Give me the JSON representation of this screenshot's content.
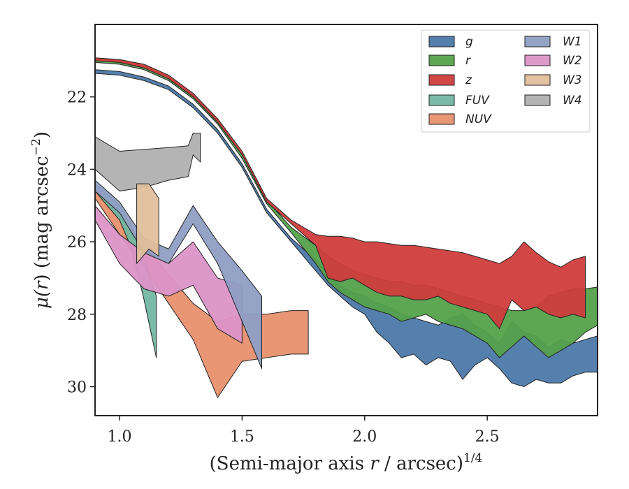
{
  "chart_data": {
    "type": "area",
    "xlabel_main": "(Semi-major axis ",
    "xlabel_var": "r",
    "xlabel_mid": " / arcsec)",
    "xlabel_sup": "1/4",
    "ylabel_main": "μ(",
    "ylabel_var": "r",
    "ylabel_mid": ") (mag arcsec",
    "ylabel_sup": "−2",
    "ylabel_end": ")",
    "xlim": [
      0.9,
      2.95
    ],
    "ylim": [
      30.8,
      20.0
    ],
    "y_inverted": true,
    "xticks": [
      1.0,
      1.5,
      2.0,
      2.5
    ],
    "xtick_labels": [
      "1.0",
      "1.5",
      "2.0",
      "2.5"
    ],
    "yticks": [
      22,
      24,
      26,
      28,
      30
    ],
    "ytick_labels": [
      "22",
      "24",
      "26",
      "28",
      "30"
    ],
    "grid": false,
    "legend_position": "top-right",
    "legend_columns": 2,
    "series": [
      {
        "name": "g",
        "color": "#4c78a8",
        "x": [
          0.9,
          1.0,
          1.1,
          1.2,
          1.3,
          1.4,
          1.5,
          1.6,
          1.7,
          1.8,
          1.85,
          1.9,
          1.95,
          2.0,
          2.05,
          2.1,
          2.15,
          2.2,
          2.25,
          2.3,
          2.35,
          2.4,
          2.45,
          2.5,
          2.55,
          2.6,
          2.65,
          2.7,
          2.75,
          2.8,
          2.85,
          2.9,
          2.95
        ],
        "y_top": [
          21.25,
          21.3,
          21.45,
          21.7,
          22.2,
          22.9,
          23.85,
          25.1,
          25.9,
          26.5,
          26.9,
          27.2,
          27.4,
          27.5,
          27.7,
          27.8,
          28.0,
          28.1,
          28.2,
          28.3,
          28.1,
          28.0,
          28.3,
          28.5,
          28.8,
          28.2,
          28.5,
          28.6,
          28.9,
          28.7,
          28.8,
          28.7,
          28.6
        ],
        "y_bottom": [
          21.35,
          21.4,
          21.55,
          21.8,
          22.3,
          23.0,
          23.95,
          25.2,
          26.0,
          26.8,
          27.2,
          27.5,
          27.8,
          28.0,
          28.5,
          28.8,
          29.2,
          29.1,
          29.4,
          29.2,
          29.3,
          29.8,
          29.4,
          29.2,
          29.5,
          29.9,
          30.0,
          29.8,
          29.9,
          29.9,
          29.7,
          29.6,
          29.6
        ]
      },
      {
        "name": "r",
        "color": "#54a24b",
        "x": [
          0.9,
          1.0,
          1.1,
          1.2,
          1.3,
          1.4,
          1.5,
          1.6,
          1.7,
          1.8,
          1.85,
          1.9,
          1.95,
          2.0,
          2.05,
          2.1,
          2.15,
          2.2,
          2.25,
          2.3,
          2.35,
          2.4,
          2.45,
          2.5,
          2.55,
          2.6,
          2.65,
          2.7,
          2.75,
          2.8,
          2.85,
          2.9,
          2.95
        ],
        "y_top": [
          20.95,
          21.0,
          21.15,
          21.45,
          21.95,
          22.65,
          23.6,
          24.85,
          25.6,
          26.1,
          26.4,
          26.6,
          26.8,
          26.9,
          27.0,
          27.1,
          27.1,
          27.2,
          27.2,
          27.3,
          27.4,
          27.5,
          27.6,
          27.7,
          27.8,
          27.9,
          27.9,
          27.8,
          27.5,
          27.4,
          27.3,
          27.3,
          27.25
        ],
        "y_bottom": [
          21.05,
          21.1,
          21.25,
          21.55,
          22.05,
          22.75,
          23.7,
          24.95,
          25.75,
          26.6,
          27.1,
          27.4,
          27.6,
          27.8,
          27.9,
          28.0,
          28.2,
          28.1,
          28.0,
          28.2,
          28.3,
          28.4,
          28.6,
          28.8,
          29.2,
          28.9,
          28.6,
          28.9,
          29.2,
          29.0,
          28.8,
          28.5,
          28.3
        ]
      },
      {
        "name": "z",
        "color": "#d03c3c",
        "x": [
          0.9,
          1.0,
          1.1,
          1.2,
          1.3,
          1.4,
          1.5,
          1.6,
          1.7,
          1.8,
          1.85,
          1.9,
          1.95,
          2.0,
          2.05,
          2.1,
          2.15,
          2.2,
          2.25,
          2.3,
          2.35,
          2.4,
          2.45,
          2.5,
          2.55,
          2.6,
          2.65,
          2.7,
          2.75,
          2.8,
          2.85,
          2.9
        ],
        "y_top": [
          20.92,
          20.97,
          21.1,
          21.4,
          21.9,
          22.6,
          23.5,
          24.8,
          25.4,
          25.8,
          25.85,
          25.85,
          25.9,
          26.0,
          26.0,
          26.05,
          26.1,
          26.1,
          26.15,
          26.2,
          26.25,
          26.3,
          26.4,
          26.5,
          26.6,
          26.4,
          26.0,
          26.3,
          26.55,
          26.7,
          26.5,
          26.4
        ],
        "y_bottom": [
          21.0,
          21.05,
          21.2,
          21.5,
          22.0,
          22.7,
          23.6,
          24.9,
          25.5,
          26.1,
          27.0,
          27.1,
          27.0,
          27.2,
          27.4,
          27.5,
          27.5,
          27.6,
          27.6,
          27.5,
          27.7,
          27.8,
          27.9,
          28.0,
          28.4,
          27.6,
          27.9,
          27.8,
          28.0,
          28.1,
          28.0,
          28.1
        ]
      },
      {
        "name": "FUV",
        "color": "#72b7a2",
        "x": [
          0.9,
          0.95,
          1.0,
          1.05,
          1.1,
          1.15
        ],
        "y_top": [
          24.4,
          24.7,
          25.0,
          25.6,
          26.5,
          27.5
        ],
        "y_bottom": [
          24.6,
          25.0,
          25.4,
          26.2,
          27.6,
          29.2
        ]
      },
      {
        "name": "NUV",
        "color": "#e8906e",
        "x": [
          0.9,
          1.0,
          1.1,
          1.2,
          1.3,
          1.4,
          1.5,
          1.6,
          1.7,
          1.77
        ],
        "y_top": [
          24.5,
          25.3,
          26.1,
          26.9,
          27.7,
          28.2,
          28.0,
          28.0,
          27.9,
          27.9
        ],
        "y_bottom": [
          24.8,
          25.8,
          26.7,
          27.7,
          28.7,
          30.3,
          29.3,
          29.2,
          29.1,
          29.1
        ]
      },
      {
        "name": "W1",
        "color": "#8f9ec4",
        "x": [
          0.9,
          1.0,
          1.1,
          1.2,
          1.3,
          1.4,
          1.5,
          1.58
        ],
        "y_top": [
          24.3,
          24.9,
          25.9,
          26.2,
          25.0,
          26.0,
          26.8,
          27.5
        ],
        "y_bottom": [
          24.6,
          25.2,
          26.3,
          26.6,
          25.5,
          26.6,
          28.2,
          29.5
        ]
      },
      {
        "name": "W2",
        "color": "#dc94c8",
        "x": [
          0.9,
          1.0,
          1.1,
          1.2,
          1.3,
          1.4,
          1.5
        ],
        "y_top": [
          25.0,
          25.8,
          26.3,
          26.6,
          26.0,
          27.0,
          27.2
        ],
        "y_bottom": [
          25.4,
          26.6,
          27.3,
          27.5,
          27.2,
          28.4,
          28.8
        ]
      },
      {
        "name": "W3",
        "color": "#e0bf9b",
        "x": [
          1.07,
          1.12,
          1.16
        ],
        "y_top": [
          24.4,
          24.4,
          24.8
        ],
        "y_bottom": [
          26.6,
          26.2,
          26.4
        ]
      },
      {
        "name": "W4",
        "color": "#b0b0b0",
        "x": [
          0.9,
          1.0,
          1.1,
          1.2,
          1.28,
          1.3,
          1.33
        ],
        "y_top": [
          23.1,
          23.5,
          23.45,
          23.4,
          23.35,
          23.0,
          23.0
        ],
        "y_bottom": [
          24.0,
          24.6,
          24.5,
          24.3,
          24.2,
          23.6,
          23.8
        ]
      }
    ]
  }
}
